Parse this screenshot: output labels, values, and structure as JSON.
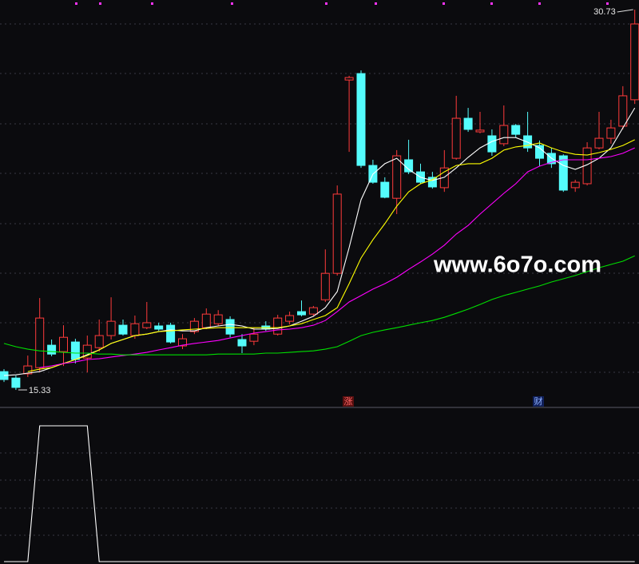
{
  "chart_data": [
    {
      "type": "candlestick",
      "up_color": "#ff3b3b",
      "down_color": "#54fcfc",
      "open": [
        16.07,
        15.81,
        15.98,
        16.23,
        17.14,
        16.88,
        17.27,
        16.62,
        17.04,
        17.53,
        17.95,
        17.53,
        17.85,
        17.92,
        17.95,
        17.11,
        17.69,
        17.85,
        18.01,
        18.18,
        17.37,
        17.3,
        17.92,
        17.59,
        18.11,
        18.5,
        18.4,
        18.98,
        20.05,
        27.88,
        28.14,
        24.42,
        23.74,
        23.09,
        24.65,
        24.16,
        23.94,
        23.52,
        24.71,
        26.33,
        25.78,
        25.62,
        25.3,
        26.04,
        25.62,
        25.23,
        24.91,
        24.81,
        23.52,
        23.68,
        25.13,
        25.52,
        26.01,
        27.08
      ],
      "high": [
        16.17,
        15.91,
        16.72,
        19.05,
        17.37,
        17.95,
        17.4,
        17.53,
        18.18,
        19.08,
        18.18,
        18.34,
        18.89,
        18.05,
        18.05,
        17.59,
        18.24,
        18.63,
        18.56,
        18.31,
        17.59,
        17.85,
        18.11,
        18.37,
        18.5,
        18.95,
        18.73,
        21.02,
        23.61,
        28.05,
        28.27,
        24.65,
        23.94,
        25.04,
        25.46,
        24.49,
        24.16,
        25.04,
        27.24,
        26.75,
        26.59,
        25.88,
        26.85,
        26.1,
        26.59,
        25.43,
        25.13,
        24.87,
        23.84,
        25.36,
        26.59,
        26.27,
        27.63,
        30.73
      ],
      "low": [
        15.65,
        15.33,
        15.85,
        16.07,
        16.69,
        16.3,
        16.4,
        16.04,
        16.88,
        17.37,
        17.53,
        17.4,
        17.79,
        17.72,
        17.21,
        16.98,
        17.59,
        17.79,
        17.92,
        17.46,
        16.82,
        17.14,
        17.72,
        17.53,
        17.98,
        18.31,
        18.31,
        18.89,
        19.96,
        24.97,
        24.32,
        23.68,
        23.09,
        22.45,
        24.07,
        23.68,
        23.48,
        23.35,
        24.65,
        25.78,
        25.72,
        24.81,
        25.2,
        25.55,
        24.97,
        24.39,
        24.32,
        23.35,
        23.35,
        23.61,
        25.07,
        25.3,
        25.88,
        26.91
      ],
      "close": [
        15.75,
        15.43,
        16.3,
        18.24,
        16.78,
        17.46,
        16.56,
        17.14,
        17.53,
        18.11,
        17.59,
        18.01,
        18.05,
        17.79,
        17.27,
        17.4,
        18.11,
        18.4,
        18.37,
        17.59,
        17.11,
        17.59,
        17.79,
        18.24,
        18.34,
        18.37,
        18.66,
        20.05,
        23.26,
        27.98,
        24.42,
        23.74,
        23.13,
        24.81,
        24.16,
        23.74,
        23.55,
        24.32,
        26.33,
        25.88,
        25.85,
        24.97,
        26.04,
        25.68,
        25.13,
        24.71,
        24.49,
        23.42,
        23.74,
        25.13,
        25.52,
        25.94,
        27.24,
        30.15
      ],
      "series": [
        {
          "color": "#ffffff",
          "values": [
            15.91,
            15.94,
            16.01,
            16.07,
            16.23,
            16.4,
            16.56,
            16.76,
            16.95,
            17.21,
            17.37,
            17.53,
            17.59,
            17.69,
            17.76,
            17.72,
            17.72,
            17.85,
            17.92,
            17.98,
            17.92,
            17.79,
            17.79,
            17.82,
            17.92,
            18.11,
            18.31,
            18.66,
            19.31,
            21.09,
            23.03,
            24.07,
            24.49,
            24.71,
            24.26,
            23.94,
            23.81,
            23.94,
            24.32,
            24.75,
            25.13,
            25.39,
            25.55,
            25.55,
            25.36,
            25.13,
            24.71,
            24.42,
            24.26,
            24.45,
            24.71,
            25.13,
            25.94,
            26.75
          ]
        },
        {
          "color": "#ffff00",
          "values": [
            null,
            null,
            16.07,
            16.17,
            16.23,
            16.4,
            16.56,
            16.72,
            16.95,
            17.21,
            17.37,
            17.53,
            17.59,
            17.69,
            17.72,
            17.76,
            17.79,
            17.82,
            17.85,
            17.85,
            17.85,
            17.85,
            17.85,
            17.85,
            17.92,
            18.01,
            18.18,
            18.34,
            18.66,
            19.63,
            20.67,
            21.41,
            22.06,
            22.77,
            23.35,
            23.68,
            23.84,
            24.16,
            24.42,
            24.49,
            24.49,
            24.71,
            25.04,
            25.17,
            25.23,
            25.33,
            25.13,
            24.97,
            24.87,
            24.84,
            24.94,
            25.07,
            25.23,
            25.46
          ]
        },
        {
          "color": "#ff00ff",
          "values": [
            null,
            null,
            null,
            16.23,
            16.3,
            16.4,
            16.46,
            16.56,
            16.59,
            16.66,
            16.72,
            16.78,
            16.85,
            16.95,
            17.04,
            17.14,
            17.21,
            17.27,
            17.33,
            17.43,
            17.53,
            17.63,
            17.69,
            17.76,
            17.79,
            17.85,
            17.95,
            18.14,
            18.5,
            18.89,
            19.15,
            19.41,
            19.63,
            19.89,
            20.21,
            20.51,
            20.83,
            21.19,
            21.64,
            21.99,
            22.45,
            22.87,
            23.29,
            23.68,
            24.16,
            24.39,
            24.55,
            24.65,
            24.65,
            24.65,
            24.71,
            24.78,
            24.91,
            25.13
          ]
        },
        {
          "color": "#00e000",
          "values": [
            17.21,
            17.08,
            16.98,
            16.91,
            16.88,
            16.85,
            16.82,
            16.82,
            16.78,
            16.78,
            16.75,
            16.75,
            16.75,
            16.75,
            16.75,
            16.75,
            16.75,
            16.75,
            16.78,
            16.78,
            16.78,
            16.78,
            16.82,
            16.82,
            16.85,
            16.88,
            16.91,
            16.98,
            17.08,
            17.3,
            17.53,
            17.66,
            17.76,
            17.85,
            17.95,
            18.05,
            18.14,
            18.27,
            18.43,
            18.6,
            18.79,
            18.99,
            19.15,
            19.28,
            19.41,
            19.54,
            19.7,
            19.83,
            19.96,
            20.12,
            20.28,
            20.41,
            20.54,
            20.76
          ]
        }
      ],
      "ylim": [
        14.62,
        31.12
      ],
      "annotations": [
        {
          "label": "30.73",
          "value": 30.73
        },
        {
          "label": "15.33",
          "value": 15.33
        }
      ],
      "markers": [
        "涨",
        "财"
      ],
      "watermark": "www.6o7o.com"
    },
    {
      "type": "line",
      "color": "#ffffff",
      "values": [
        0,
        0,
        0,
        1,
        1,
        1,
        1,
        1,
        0,
        0,
        0,
        0,
        0,
        0,
        0,
        0,
        0,
        0,
        0,
        0,
        0,
        0,
        0,
        0,
        0,
        0,
        0,
        0,
        0,
        0,
        0,
        0,
        0,
        0,
        0,
        0,
        0,
        0,
        0,
        0,
        0,
        0,
        0,
        0,
        0,
        0,
        0,
        0,
        0,
        0,
        0,
        0,
        0,
        0
      ],
      "ylim": [
        0,
        1
      ]
    }
  ]
}
